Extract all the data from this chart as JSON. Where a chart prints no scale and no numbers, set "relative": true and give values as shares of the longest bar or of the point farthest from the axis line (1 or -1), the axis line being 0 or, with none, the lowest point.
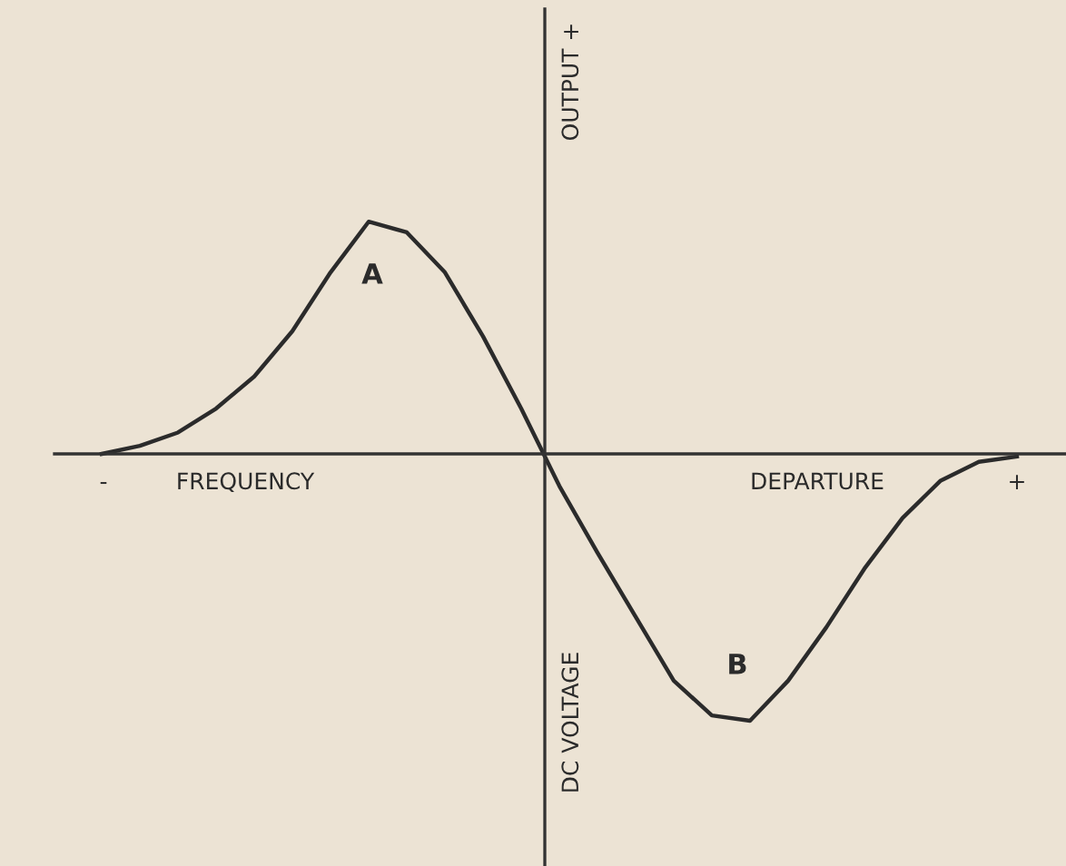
{
  "chart_data": {
    "type": "line",
    "relative": true,
    "marker": "none",
    "line_style": "solid",
    "categories": [
      null,
      null,
      null,
      null,
      null,
      null,
      null,
      null,
      null,
      null,
      null,
      null,
      null,
      null,
      null,
      null,
      null,
      null,
      null,
      null,
      null,
      null,
      null,
      null,
      null
    ],
    "series": [
      {
        "color": "#2b2b2b",
        "values": [
          0,
          0.03,
          0.08,
          0.17,
          0.29,
          0.46,
          0.68,
          0.87,
          0.83,
          0.68,
          0.44,
          0.17,
          -0.12,
          -0.37,
          -0.61,
          -0.85,
          -0.98,
          -1.0,
          -0.85,
          -0.65,
          -0.43,
          -0.24,
          -0.1,
          -0.03,
          -0.01
        ]
      }
    ],
    "annotations": [
      "-",
      "FREQUENCY",
      "DEPARTURE",
      "+",
      "OUTPUT +",
      "DC VOLTAGE",
      "A",
      "B"
    ]
  }
}
